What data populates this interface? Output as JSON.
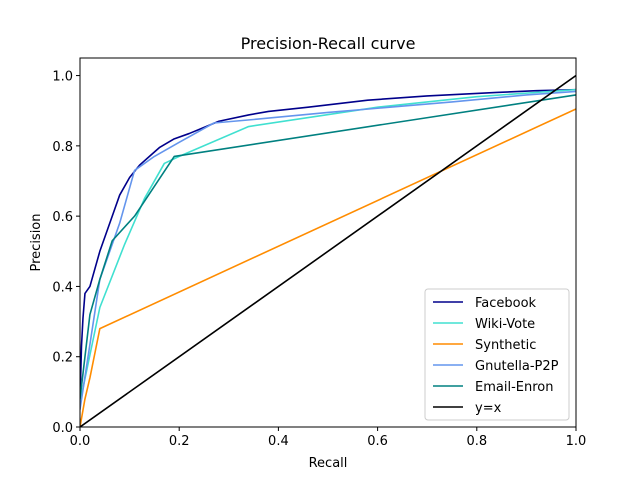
{
  "chart_data": {
    "type": "line",
    "title": "Precision-Recall curve",
    "xlabel": "Recall",
    "ylabel": "Precision",
    "xlim": [
      0,
      1
    ],
    "ylim": [
      0,
      1.05
    ],
    "xticks": [
      0.0,
      0.2,
      0.4,
      0.6,
      0.8,
      1.0
    ],
    "yticks": [
      0.0,
      0.2,
      0.4,
      0.6,
      0.8,
      1.0
    ],
    "xtick_labels": [
      "0.0",
      "0.2",
      "0.4",
      "0.6",
      "0.8",
      "1.0"
    ],
    "ytick_labels": [
      "0.0",
      "0.2",
      "0.4",
      "0.6",
      "0.8",
      "1.0"
    ],
    "legend_position": "lower-right",
    "series": [
      {
        "name": "Facebook",
        "color": "#00008b",
        "x": [
          0.0,
          0.003,
          0.006,
          0.01,
          0.02,
          0.04,
          0.07,
          0.08,
          0.1,
          0.12,
          0.14,
          0.16,
          0.19,
          0.22,
          0.28,
          0.34,
          0.38,
          0.46,
          0.58,
          0.7,
          0.84,
          0.92,
          1.0
        ],
        "y": [
          0.07,
          0.23,
          0.31,
          0.38,
          0.4,
          0.5,
          0.62,
          0.66,
          0.71,
          0.745,
          0.77,
          0.795,
          0.82,
          0.835,
          0.87,
          0.888,
          0.898,
          0.91,
          0.93,
          0.942,
          0.952,
          0.957,
          0.96
        ]
      },
      {
        "name": "Wiki-Vote",
        "color": "#40e0d0",
        "x": [
          0.0,
          0.04,
          0.09,
          0.13,
          0.17,
          0.2,
          0.34,
          0.6,
          0.8,
          1.0
        ],
        "y": [
          0.07,
          0.34,
          0.52,
          0.65,
          0.75,
          0.77,
          0.855,
          0.91,
          0.94,
          0.96
        ]
      },
      {
        "name": "Synthetic",
        "color": "#ff8c00",
        "x": [
          0.0,
          0.01,
          0.02,
          0.04,
          1.0
        ],
        "y": [
          0.0,
          0.08,
          0.14,
          0.28,
          0.905
        ]
      },
      {
        "name": "Gnutella-P2P",
        "color": "#6495ed",
        "x": [
          0.0,
          0.04,
          0.08,
          0.11,
          0.15,
          0.2,
          0.27,
          0.35,
          0.5,
          0.75,
          0.9,
          1.0
        ],
        "y": [
          0.05,
          0.42,
          0.58,
          0.73,
          0.77,
          0.81,
          0.865,
          0.875,
          0.895,
          0.925,
          0.945,
          0.955
        ]
      },
      {
        "name": "Email-Enron",
        "color": "#008080",
        "x": [
          0.0,
          0.02,
          0.04,
          0.065,
          0.11,
          0.19,
          1.0
        ],
        "y": [
          0.08,
          0.32,
          0.42,
          0.53,
          0.6,
          0.77,
          0.945
        ]
      },
      {
        "name": "y=x",
        "color": "#000000",
        "x": [
          0.0,
          1.0
        ],
        "y": [
          0.0,
          1.0
        ]
      }
    ]
  }
}
